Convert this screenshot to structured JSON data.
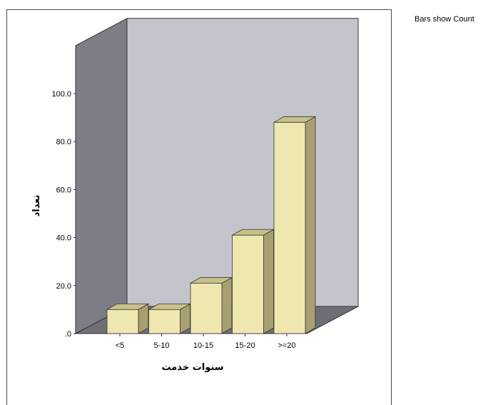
{
  "note": "Bars show Count",
  "chart_data": {
    "type": "bar",
    "style": "3d",
    "categories": [
      "<5",
      "5-10",
      "10-15",
      "15-20",
      ">=20"
    ],
    "values": [
      10,
      10,
      21,
      41,
      88
    ],
    "ylim": [
      0,
      120
    ],
    "yticks": [
      ".0",
      "20.0",
      "40.0",
      "60.0",
      "80.0",
      "100.0"
    ],
    "xlabel": "سنوات خدمت",
    "ylabel": "تعداد",
    "colors": {
      "bar_front": "#efe7b0",
      "bar_top": "#c8c08a",
      "bar_side": "#a8a070",
      "back_wall": "#c4c4cc",
      "side_wall": "#7d7d85",
      "floor": "#6e6e76"
    }
  }
}
